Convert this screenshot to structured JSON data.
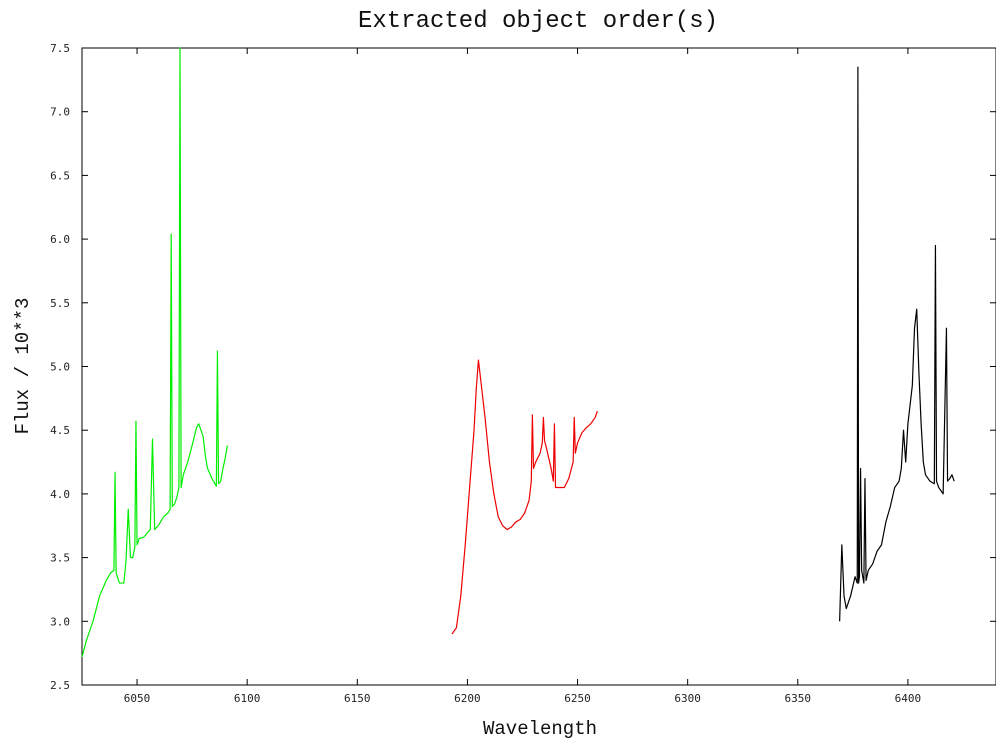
{
  "chart_data": {
    "type": "line",
    "title": "Extracted object order(s)",
    "xlabel": "Wavelength",
    "ylabel": "Flux / 10**3",
    "xlim": [
      6025,
      6440
    ],
    "ylim": [
      2.5,
      7.5
    ],
    "x_ticks": [
      6050,
      6100,
      6150,
      6200,
      6250,
      6300,
      6350,
      6400
    ],
    "y_ticks": [
      2.5,
      3.0,
      3.5,
      4.0,
      4.5,
      5.0,
      5.5,
      6.0,
      6.5,
      7.0,
      7.5
    ],
    "grid": false,
    "legend": false,
    "series": [
      {
        "color": "#00ee00",
        "x": [
          6025,
          6027,
          6030,
          6033,
          6036,
          6038,
          6039.5,
          6040,
          6040.5,
          6042,
          6044,
          6045,
          6046,
          6047,
          6048,
          6049,
          6049.5,
          6050,
          6051,
          6053,
          6055,
          6056,
          6057,
          6058,
          6060,
          6062,
          6064,
          6065,
          6065.5,
          6066,
          6067,
          6068,
          6069,
          6069.5,
          6070,
          6071,
          6073,
          6075,
          6076,
          6077,
          6078,
          6080,
          6081,
          6082,
          6084,
          6086,
          6086.5,
          6087,
          6088,
          6089,
          6090,
          6091
        ],
        "y": [
          2.72,
          2.85,
          3.0,
          3.2,
          3.32,
          3.38,
          3.4,
          4.17,
          3.38,
          3.3,
          3.3,
          3.48,
          3.88,
          3.5,
          3.5,
          3.58,
          4.57,
          3.6,
          3.65,
          3.66,
          3.7,
          3.72,
          4.43,
          3.72,
          3.76,
          3.82,
          3.85,
          3.88,
          6.04,
          3.9,
          3.92,
          3.97,
          4.05,
          7.5,
          4.05,
          4.15,
          4.25,
          4.38,
          4.45,
          4.52,
          4.55,
          4.45,
          4.3,
          4.2,
          4.12,
          4.06,
          5.12,
          4.08,
          4.1,
          4.2,
          4.28,
          4.38
        ]
      },
      {
        "color": "#ee0000",
        "x": [
          6193,
          6195,
          6197,
          6199,
          6201,
          6203,
          6204,
          6205,
          6206,
          6208,
          6210,
          6212,
          6214,
          6216,
          6218,
          6220,
          6222,
          6224,
          6226,
          6228,
          6229,
          6229.5,
          6230,
          6231,
          6233,
          6234,
          6234.5,
          6235,
          6236,
          6238,
          6239,
          6239.5,
          6240,
          6242,
          6244,
          6246,
          6248,
          6248.5,
          6249,
          6250,
          6252,
          6254,
          6256,
          6258,
          6259
        ],
        "y": [
          2.9,
          2.95,
          3.2,
          3.6,
          4.05,
          4.5,
          4.82,
          5.05,
          4.9,
          4.6,
          4.25,
          4.0,
          3.82,
          3.75,
          3.72,
          3.74,
          3.78,
          3.8,
          3.85,
          3.95,
          4.1,
          4.62,
          4.2,
          4.25,
          4.32,
          4.4,
          4.6,
          4.42,
          4.35,
          4.2,
          4.1,
          4.55,
          4.05,
          4.05,
          4.05,
          4.12,
          4.25,
          4.6,
          4.32,
          4.4,
          4.48,
          4.52,
          4.55,
          4.6,
          4.65
        ]
      },
      {
        "color": "#000000",
        "x": [
          6369,
          6370,
          6371,
          6372,
          6374,
          6376,
          6377,
          6377.3,
          6377.6,
          6378,
          6378.5,
          6379,
          6380,
          6380.5,
          6381,
          6382,
          6384,
          6386,
          6388,
          6390,
          6392,
          6394,
          6396,
          6397,
          6398,
          6399,
          6400,
          6401,
          6402,
          6403,
          6404,
          6405,
          6406,
          6407,
          6408,
          6410,
          6412,
          6412.5,
          6413,
          6414,
          6416,
          6417.5,
          6418,
          6419,
          6420,
          6421
        ],
        "y": [
          3.0,
          3.6,
          3.2,
          3.1,
          3.2,
          3.35,
          3.3,
          7.35,
          3.3,
          3.35,
          4.2,
          3.4,
          3.3,
          4.12,
          3.32,
          3.4,
          3.45,
          3.55,
          3.6,
          3.78,
          3.9,
          4.05,
          4.1,
          4.2,
          4.5,
          4.25,
          4.55,
          4.7,
          4.85,
          5.3,
          5.45,
          4.95,
          4.55,
          4.25,
          4.15,
          4.1,
          4.08,
          5.95,
          4.1,
          4.05,
          4.0,
          5.3,
          4.1,
          4.12,
          4.15,
          4.1
        ]
      }
    ]
  }
}
